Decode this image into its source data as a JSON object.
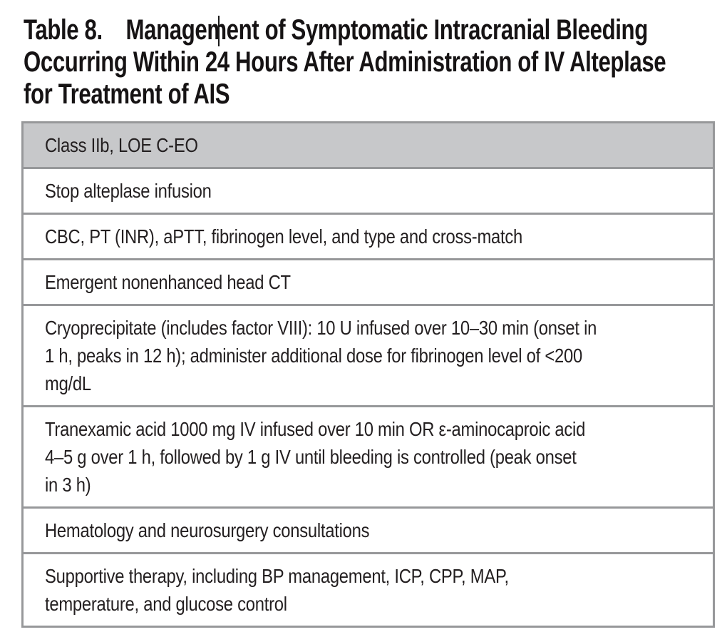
{
  "title": {
    "label": "Table 8.",
    "text": "Management of Symptomatic Intracranial Bleeding\nOccurring Within 24 Hours After Administration of IV Alteplase\nfor Treatment of AIS"
  },
  "table": {
    "header": "Class IIb, LOE C-EO",
    "rows": [
      "Stop alteplase infusion",
      "CBC, PT (INR), aPTT, fibrinogen level, and type and cross-match",
      "Emergent nonenhanced head CT",
      "Cryoprecipitate (includes factor VIII): 10 U infused over 10–30 min (onset in\n1 h, peaks in 12 h); administer additional dose for fibrinogen level of <200\nmg/dL",
      "Tranexamic acid 1000 mg IV infused over 10 min OR ε-aminocaproic acid\n4–5 g over 1 h, followed by 1 g IV until bleeding is controlled (peak onset\nin 3 h)",
      "Hematology and neurosurgery consultations",
      "Supportive therapy, including BP management, ICP, CPP, MAP,\ntemperature, and glucose control"
    ]
  },
  "colors": {
    "header_bg": "#c7c8ca",
    "border": "#97989a",
    "text": "#231f20"
  }
}
